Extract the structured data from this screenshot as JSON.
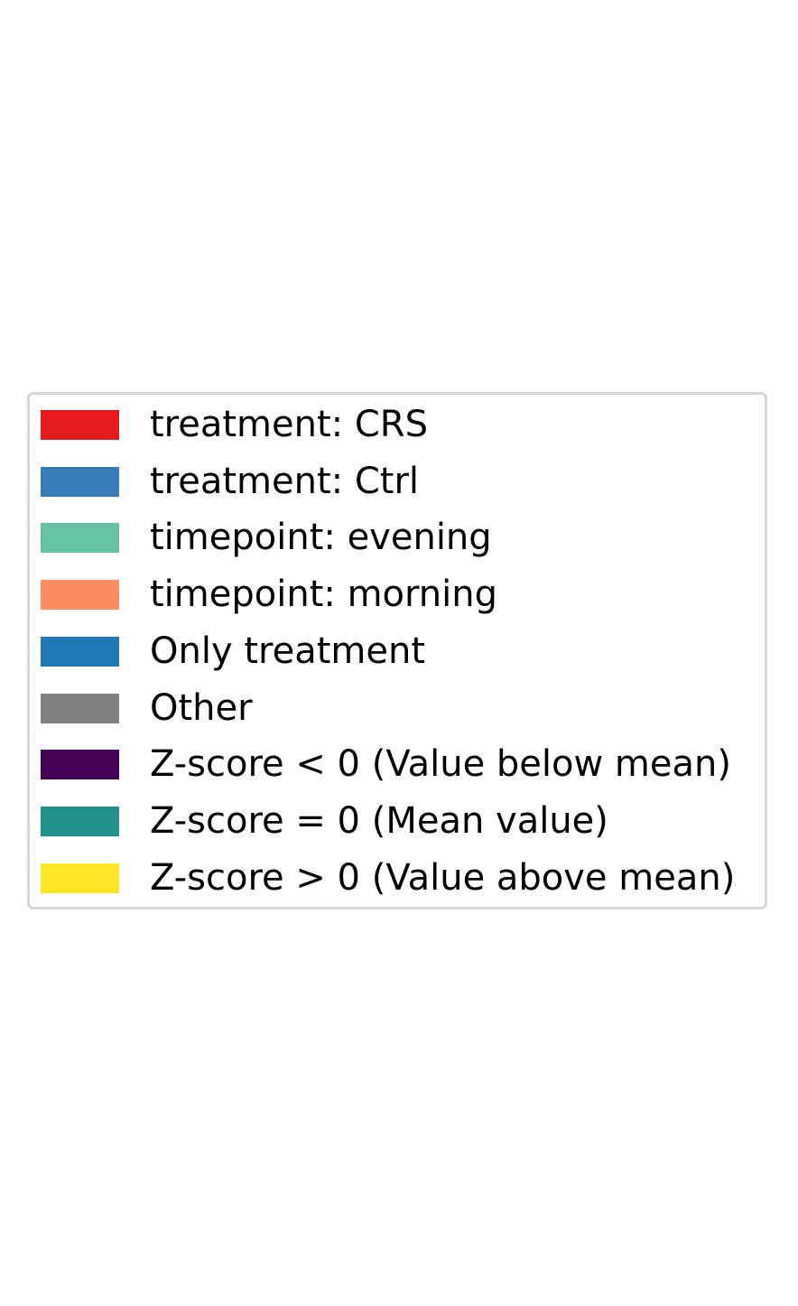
{
  "chart_data": {
    "type": "legend",
    "legend": [
      {
        "label": "treatment: CRS",
        "color": "#e41a1c"
      },
      {
        "label": "treatment: Ctrl",
        "color": "#377eb8"
      },
      {
        "label": "timepoint: evening",
        "color": "#66c2a5"
      },
      {
        "label": "timepoint: morning",
        "color": "#fc8d62"
      },
      {
        "label": "Only treatment",
        "color": "#1f77b4"
      },
      {
        "label": "Other",
        "color": "#808080"
      },
      {
        "label": "Z-score < 0 (Value below mean)",
        "color": "#440154"
      },
      {
        "label": "Z-score = 0 (Mean value)",
        "color": "#21918c"
      },
      {
        "label": "Z-score > 0 (Value above mean)",
        "color": "#fde725"
      }
    ]
  }
}
